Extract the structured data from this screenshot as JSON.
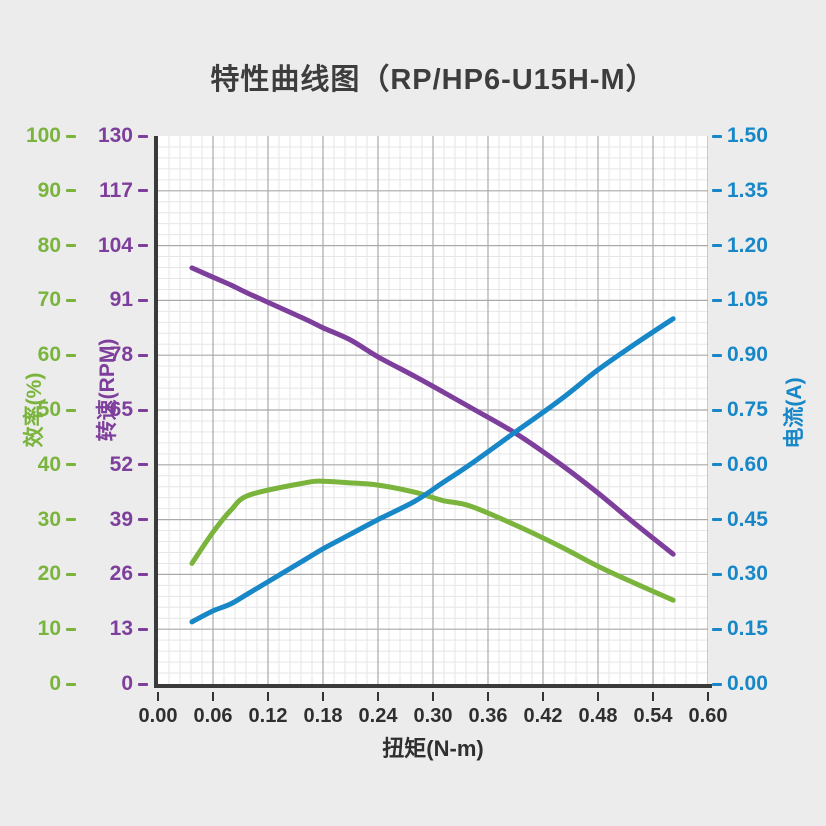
{
  "title": "特性曲线图（RP/HP6-U15H-M）",
  "colors": {
    "background": "#ececec",
    "plot_background": "#ffffff",
    "grid_major": "#a9a9a9",
    "grid_minor": "#e6e6e6",
    "spine": "#3a3a3a",
    "title_text": "#3d3d3d",
    "x_text": "#2f2f2f",
    "efficiency": "#7ab43c",
    "speed": "#7e3f9c",
    "current": "#1787c7"
  },
  "axes": {
    "x": {
      "label": "扭矩(N-m)",
      "min": 0,
      "max": 0.6,
      "tick_labels": [
        "0.00",
        "0.06",
        "0.12",
        "0.18",
        "0.24",
        "0.30",
        "0.36",
        "0.42",
        "0.48",
        "0.54",
        "0.60"
      ]
    },
    "efficiency": {
      "label": "效率(%)",
      "min": 0,
      "max": 100,
      "tick_labels": [
        "100",
        "90",
        "80",
        "70",
        "60",
        "50",
        "40",
        "30",
        "20",
        "10",
        "0"
      ]
    },
    "speed": {
      "label": "转速(RPM)",
      "min": 0,
      "max": 130,
      "tick_labels": [
        "130",
        "117",
        "104",
        "91",
        "78",
        "65",
        "52",
        "39",
        "26",
        "13",
        "0"
      ]
    },
    "current": {
      "label": "电流(A)",
      "min": 0,
      "max": 1.5,
      "tick_labels": [
        "1.50",
        "1.35",
        "1.20",
        "1.05",
        "0.90",
        "0.75",
        "0.60",
        "0.45",
        "0.30",
        "0.15",
        "0.00"
      ]
    }
  },
  "chart_data": {
    "type": "line",
    "title": "特性曲线图（RP/HP6-U15H-M）",
    "xlabel": "扭矩(N-m)",
    "x_range": [
      0,
      0.6
    ],
    "grid": "major+minor",
    "legend": "none",
    "x_torque_nm": [
      0.037,
      0.06,
      0.08,
      0.1,
      0.16,
      0.18,
      0.21,
      0.24,
      0.28,
      0.31,
      0.34,
      0.39,
      0.44,
      0.48,
      0.52,
      0.562
    ],
    "series": [
      {
        "name": "效率(%)",
        "axis": "efficiency",
        "unit": "%",
        "values": [
          22,
          27.7,
          31.8,
          34.5,
          36.7,
          37,
          36.7,
          36.3,
          35,
          33.5,
          32.5,
          29,
          25,
          21.5,
          18.4,
          15.3
        ]
      },
      {
        "name": "转速(RPM)",
        "axis": "speed",
        "unit": "RPM",
        "values": [
          98.7,
          96.5,
          94.6,
          92.5,
          86.6,
          84.5,
          81.6,
          77.6,
          73,
          69.4,
          65.7,
          59.5,
          52,
          45.3,
          38.1,
          30.8
        ]
      },
      {
        "name": "电流(A)",
        "axis": "current",
        "unit": "A",
        "values": [
          0.17,
          0.2,
          0.22,
          0.25,
          0.34,
          0.37,
          0.41,
          0.45,
          0.5,
          0.55,
          0.6,
          0.69,
          0.78,
          0.86,
          0.93,
          1.0
        ]
      }
    ]
  }
}
